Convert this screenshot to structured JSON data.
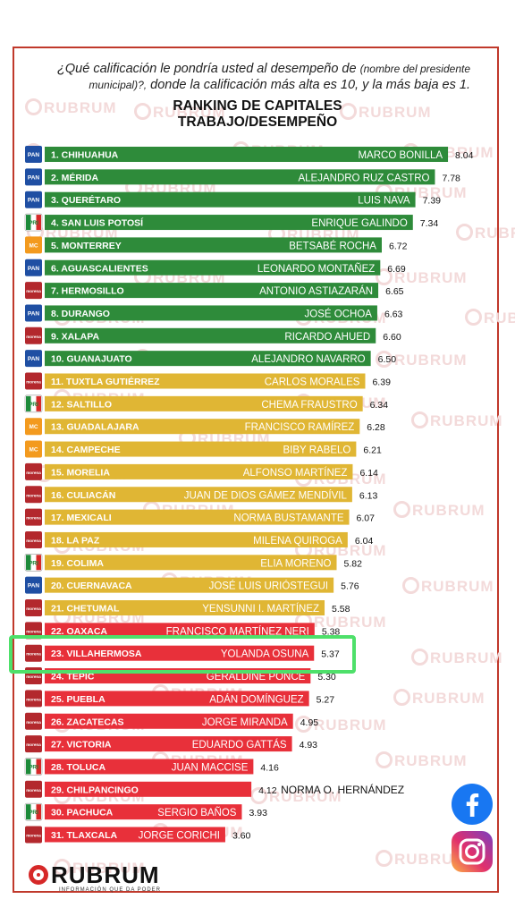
{
  "question": {
    "part1": "¿Qué calificación le pondría usted al desempeño de",
    "part2": "(nombre del presidente",
    "part3": "municipal)?,",
    "part4": "donde la calificación más alta es 10, y la más baja es 1."
  },
  "title_line1": "RANKING DE CAPITALES",
  "title_line2": "TRABAJO/DESEMPEÑO",
  "watermark": "RUBRUM",
  "logo": {
    "word": "RUBRUM",
    "tagline": "INFORMACIÓN QUE DA PODER"
  },
  "colors": {
    "green": "#2e8b3a",
    "yellow": "#e0b634",
    "red": "#e8303a",
    "highlight": "#4ee06a",
    "pan": "#1f4fa3",
    "pri": "#1d8a3a",
    "mc": "#f39a1e",
    "morena": "#b3282d"
  },
  "icons": [
    "facebook-icon",
    "instagram-icon"
  ],
  "highlighted_rank": 23,
  "chart_data": {
    "type": "bar",
    "orientation": "horizontal",
    "title": "RANKING DE CAPITALES TRABAJO/DESEMPEÑO",
    "xlim": [
      0,
      10
    ],
    "grid": false,
    "categories": [
      "1. CHIHUAHUA",
      "2. MÉRIDA",
      "3. QUERÉTARO",
      "4. SAN LUIS POTOSÍ",
      "5. MONTERREY",
      "6. AGUASCALIENTES",
      "7. HERMOSILLO",
      "8. DURANGO",
      "9. XALAPA",
      "10. GUANAJUATO",
      "11. TUXTLA GUTIÉRREZ",
      "12. SALTILLO",
      "13. GUADALAJARA",
      "14. CAMPECHE",
      "15. MORELIA",
      "16. CULIACÁN",
      "17. MEXICALI",
      "18. LA PAZ",
      "19. COLIMA",
      "20. CUERNAVACA",
      "21. CHETUMAL",
      "22. OAXACA",
      "23. VILLAHERMOSA",
      "24. TEPIC",
      "25. PUEBLA",
      "26. ZACATECAS",
      "27. VICTORIA",
      "28. TOLUCA",
      "29. CHILPANCINGO",
      "30. PACHUCA",
      "31. TLAXCALA"
    ],
    "mayors": [
      "MARCO BONILLA",
      "ALEJANDRO RUZ CASTRO",
      "LUIS NAVA",
      "ENRIQUE GALINDO",
      "BETSABÉ ROCHA",
      "LEONARDO MONTAÑEZ",
      "ANTONIO ASTIAZARÁN",
      "JOSÉ OCHOA",
      "RICARDO AHUED",
      "ALEJANDRO NAVARRO",
      "CARLOS MORALES",
      "CHEMA FRAUSTRO",
      "FRANCISCO RAMÍREZ",
      "BIBY RABELO",
      "ALFONSO MARTÍNEZ",
      "JUAN DE DIOS GÁMEZ MENDÍVIL",
      "NORMA BUSTAMANTE",
      "MILENA QUIROGA",
      "ELIA MORENO",
      "JOSÉ LUIS URIÓSTEGUI",
      "YENSUNNI I. MARTÍNEZ",
      "FRANCISCO MARTÍNEZ NERI",
      "YOLANDA OSUNA",
      "GERALDINE PONCE",
      "ADÁN DOMÍNGUEZ",
      "JORGE MIRANDA",
      "EDUARDO GATTÁS",
      "JUAN MACCISE",
      "NORMA O. HERNÁNDEZ",
      "SERGIO BAÑOS",
      "JORGE CORICHI"
    ],
    "values": [
      8.04,
      7.78,
      7.39,
      7.34,
      6.72,
      6.69,
      6.65,
      6.63,
      6.6,
      6.5,
      6.39,
      6.34,
      6.28,
      6.21,
      6.14,
      6.13,
      6.07,
      6.04,
      5.82,
      5.76,
      5.58,
      5.38,
      5.37,
      5.3,
      5.27,
      4.95,
      4.93,
      4.16,
      4.12,
      3.93,
      3.6
    ],
    "value_labels": [
      "8.04",
      "7.78",
      "7.39",
      "7.34",
      "6.72",
      "6.69",
      "6.65",
      "6.63",
      "6.60",
      "6.50",
      "6.39",
      "6.34",
      "6.28",
      "6.21",
      "6.14",
      "6.13",
      "6.07",
      "6.04",
      "5.82",
      "5.76",
      "5.58",
      "5.38",
      "5.37",
      "5.30",
      "5.27",
      "4.95",
      "4.93",
      "4.16",
      "4.12",
      "3.93",
      "3.60"
    ],
    "bar_colors": [
      "green",
      "green",
      "green",
      "green",
      "green",
      "green",
      "green",
      "green",
      "green",
      "green",
      "yellow",
      "yellow",
      "yellow",
      "yellow",
      "yellow",
      "yellow",
      "yellow",
      "yellow",
      "yellow",
      "yellow",
      "yellow",
      "red",
      "red",
      "red",
      "red",
      "red",
      "red",
      "red",
      "red",
      "red",
      "red"
    ],
    "parties": [
      "pan",
      "pan",
      "pan",
      "pri",
      "mc",
      "pan",
      "morena",
      "pan",
      "morena",
      "pan",
      "morena",
      "pri",
      "mc",
      "mc",
      "morena",
      "morena",
      "morena",
      "morena",
      "pri",
      "pan",
      "morena",
      "morena",
      "morena",
      "morena",
      "morena",
      "morena",
      "morena",
      "pri",
      "morena",
      "pri",
      "morena"
    ],
    "party_labels": {
      "pan": "PAN",
      "pri": "PRI",
      "mc": "MC",
      "morena": "morena"
    }
  }
}
